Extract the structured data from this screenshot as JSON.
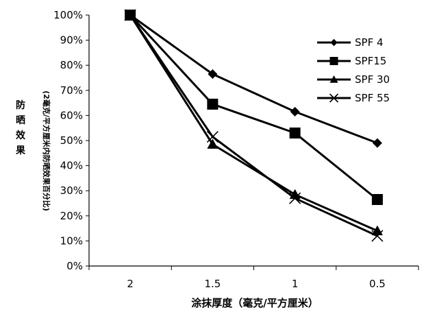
{
  "chart_data": {
    "type": "line",
    "categories": [
      "2",
      "1.5",
      "1",
      "0.5"
    ],
    "xlabel": "涂抹厚度（毫克/平方厘米）",
    "ylabel": "防晒效果",
    "ylabel_sub": "(2毫克/平方厘米内防晒效果百分比)",
    "ylim": [
      0,
      100
    ],
    "yticks": [
      "0%",
      "10%",
      "20%",
      "30%",
      "40%",
      "50%",
      "60%",
      "70%",
      "80%",
      "90%",
      "100%"
    ],
    "grid": false,
    "legend_position": "top-right",
    "series": [
      {
        "name": "SPF 4",
        "marker": "diamond",
        "values": [
          100,
          76.5,
          61.5,
          49
        ]
      },
      {
        "name": "SPF15",
        "marker": "square",
        "values": [
          100,
          64.5,
          53,
          26.5
        ]
      },
      {
        "name": "SPF 30",
        "marker": "triangle",
        "values": [
          100,
          48.5,
          28.5,
          14
        ]
      },
      {
        "name": "SPF 55",
        "marker": "x",
        "values": [
          100,
          51.5,
          27,
          12
        ]
      }
    ]
  }
}
